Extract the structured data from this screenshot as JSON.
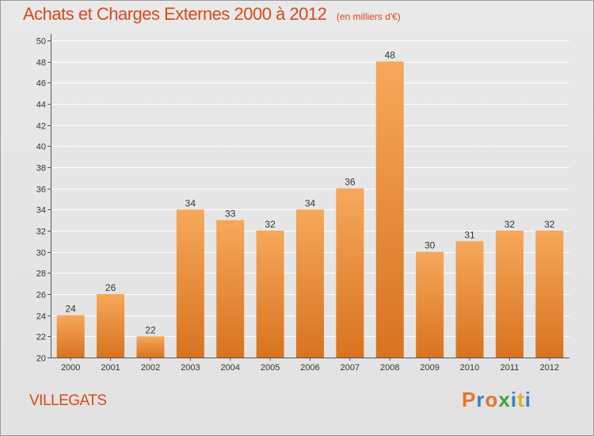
{
  "header": {
    "title": "Achats et Charges Externes 2000 à 2012",
    "unit": "(en milliers d'€)"
  },
  "footer": {
    "commune": "VILLEGATS",
    "logo": "Proxiti"
  },
  "colors": {
    "title": "#d64a1c",
    "bar_top": "#f6a85a",
    "bar_bottom": "#d8731f",
    "grid": "#ffffff",
    "logo_letters": [
      "#e8742a",
      "#3a7fc4",
      "#e8742a",
      "#3aa53a",
      "#3a7fc4",
      "#e8b020",
      "#3a7fc4"
    ]
  },
  "chart_data": {
    "type": "bar",
    "title": "Achats et Charges Externes 2000 à 2012",
    "subtitle": "(en milliers d'€)",
    "categories": [
      "2000",
      "2001",
      "2002",
      "2003",
      "2004",
      "2005",
      "2006",
      "2007",
      "2008",
      "2009",
      "2010",
      "2011",
      "2012"
    ],
    "values": [
      24,
      26,
      22,
      34,
      33,
      32,
      34,
      36,
      48,
      30,
      31,
      32,
      32
    ],
    "ylim": [
      20,
      50
    ],
    "yticks": [
      20,
      22,
      24,
      26,
      28,
      30,
      32,
      34,
      36,
      38,
      40,
      42,
      44,
      46,
      48,
      50
    ],
    "grid": true,
    "data_labels": true,
    "xlabel": "",
    "ylabel": ""
  }
}
